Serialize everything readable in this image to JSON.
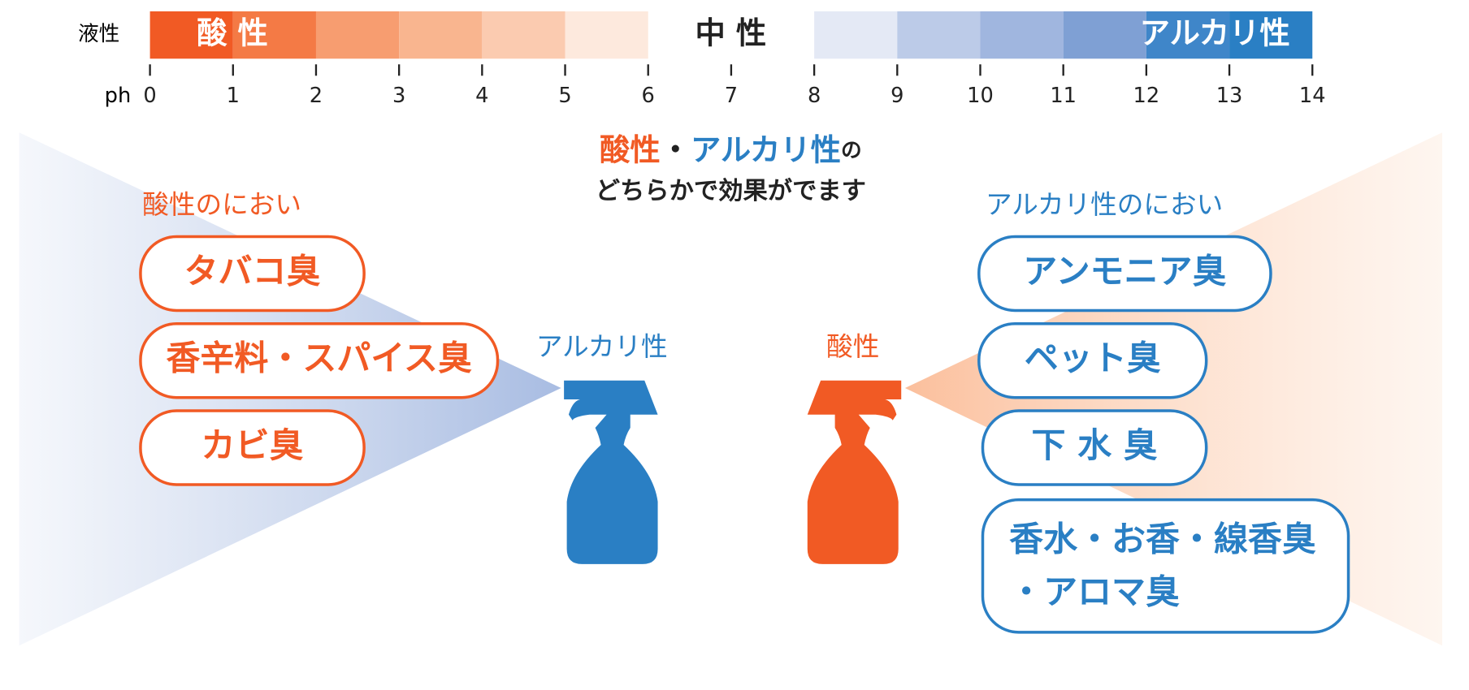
{
  "scale": {
    "liquid_label": "液性",
    "acid_label": "酸 性",
    "neutral_label": "中 性",
    "alkali_label": "アルカリ性",
    "ph_label": "ph",
    "ticks": [
      0,
      1,
      2,
      3,
      4,
      5,
      6,
      7,
      8,
      9,
      10,
      11,
      12,
      13,
      14
    ]
  },
  "center": {
    "acid": "酸性",
    "dot": "・",
    "alkali": "アルカリ性",
    "particle": "の",
    "line2": "どちらかで効果がでます"
  },
  "left": {
    "heading": "酸性のにおい",
    "items": [
      [
        "タバコ臭"
      ],
      [
        "香辛料・スパイス臭"
      ],
      [
        "カビ臭"
      ]
    ],
    "bottle_label": "アルカリ性"
  },
  "right": {
    "heading": "アルカリ性のにおい",
    "items": [
      [
        "アンモニア臭"
      ],
      [
        "ペット臭"
      ],
      [
        "下 水 臭"
      ],
      [
        "香水・お香・線香臭",
        "・アロマ臭"
      ]
    ],
    "bottle_label": "酸性"
  }
}
